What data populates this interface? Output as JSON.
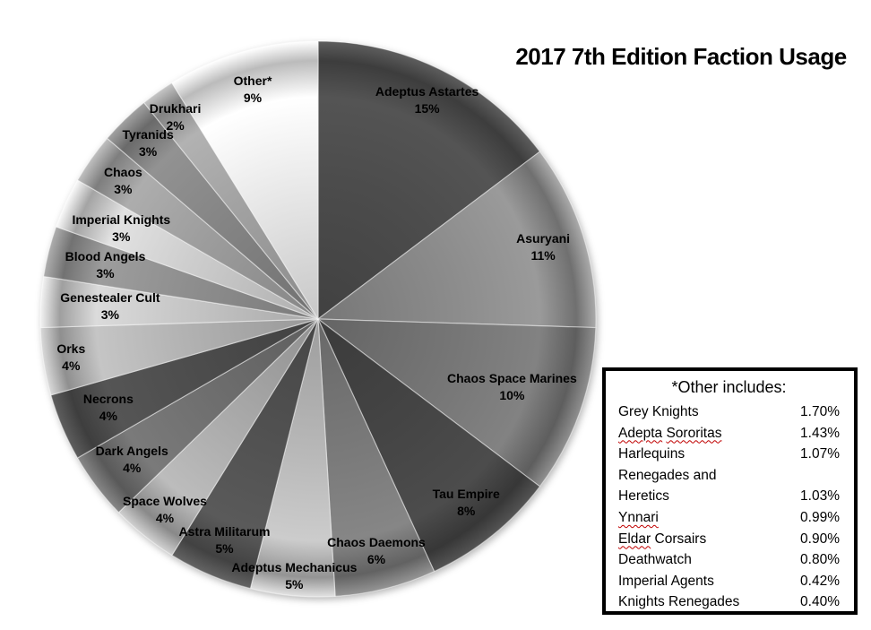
{
  "chart_data": {
    "type": "pie",
    "title": "2017 7th Edition Faction Usage",
    "start_angle_deg": 0,
    "direction": "clockwise",
    "legend_position": "labels-inside-slices",
    "slices": [
      {
        "label": "Adeptus Astartes",
        "pct_label": "15%",
        "value": 15,
        "color": "#4c4c4c",
        "label_r": 0.88
      },
      {
        "label": "Asuryani",
        "pct_label": "11%",
        "value": 11,
        "color": "#8c8c8c",
        "label_r": 0.85
      },
      {
        "label": "Chaos Space Marines",
        "pct_label": "10%",
        "value": 10,
        "color": "#767676",
        "label_r": 0.74
      },
      {
        "label": "Tau Empire",
        "pct_label": "8%",
        "value": 8,
        "color": "#454545",
        "label_r": 0.85
      },
      {
        "label": "Chaos Daemons",
        "pct_label": "6%",
        "value": 6,
        "color": "#7a7a7a",
        "label_r": 0.86
      },
      {
        "label": "Adeptus Mechanicus",
        "pct_label": "5%",
        "value": 5,
        "color": "#b9b9b9",
        "label_r": 0.93
      },
      {
        "label": "Astra Militarum",
        "pct_label": "5%",
        "value": 5,
        "color": "#525252",
        "label_r": 0.865
      },
      {
        "label": "Space Wolves",
        "pct_label": "4%",
        "value": 4,
        "color": "#ababab",
        "label_r": 0.88
      },
      {
        "label": "Dark Angels",
        "pct_label": "4%",
        "value": 4,
        "color": "#6f6f6f",
        "label_r": 0.84
      },
      {
        "label": "Necrons",
        "pct_label": "4%",
        "value": 4,
        "color": "#4d4d4d",
        "label_r": 0.82
      },
      {
        "label": "Orks",
        "pct_label": "4%",
        "value": 4,
        "color": "#b3b3b3",
        "label_r": 0.9
      },
      {
        "label": "Genestealer Cult",
        "pct_label": "3%",
        "value": 3,
        "color": "#c7c7c7",
        "label_r": 0.75
      },
      {
        "label": "Blood Angels",
        "pct_label": "3%",
        "value": 3,
        "color": "#8f8f8f",
        "label_r": 0.79
      },
      {
        "label": "Imperial Knights",
        "pct_label": "3%",
        "value": 3,
        "color": "#cdcdcd",
        "label_r": 0.78
      },
      {
        "label": "Chaos",
        "pct_label": "3%",
        "value": 3,
        "color": "#9d9d9d",
        "label_r": 0.86
      },
      {
        "label": "Tyranids",
        "pct_label": "3%",
        "value": 3,
        "color": "#858585",
        "label_r": 0.88
      },
      {
        "label": "Drukhari",
        "pct_label": "2%",
        "value": 2,
        "color": "#a2a2a2",
        "label_r": 0.89
      },
      {
        "label": "Other*",
        "pct_label": "9%",
        "value": 9,
        "color": "#eaeaea",
        "label_r": 0.86
      }
    ]
  },
  "other_box": {
    "title": "*Other includes:",
    "squiggle_color": "#c00000",
    "rows": [
      {
        "name": "Grey Knights",
        "value": "1.70%",
        "wavy_words": 0
      },
      {
        "name": "Adepta Sororitas",
        "value": "1.43%",
        "wavy_words": 2
      },
      {
        "name": "Harlequins",
        "value": "1.07%",
        "wavy_words": 0
      },
      {
        "name": "Renegades and Heretics",
        "value": "1.03%",
        "wavy_words": 0
      },
      {
        "name": "Ynnari",
        "value": "0.99%",
        "wavy_words": 1
      },
      {
        "name": "Eldar Corsairs",
        "value": "0.90%",
        "wavy_words": 1
      },
      {
        "name": "Deathwatch",
        "value": "0.80%",
        "wavy_words": 0
      },
      {
        "name": "Imperial Agents",
        "value": "0.42%",
        "wavy_words": 0
      },
      {
        "name": "Knights Renegades",
        "value": "0.40%",
        "wavy_words": 0
      }
    ]
  }
}
